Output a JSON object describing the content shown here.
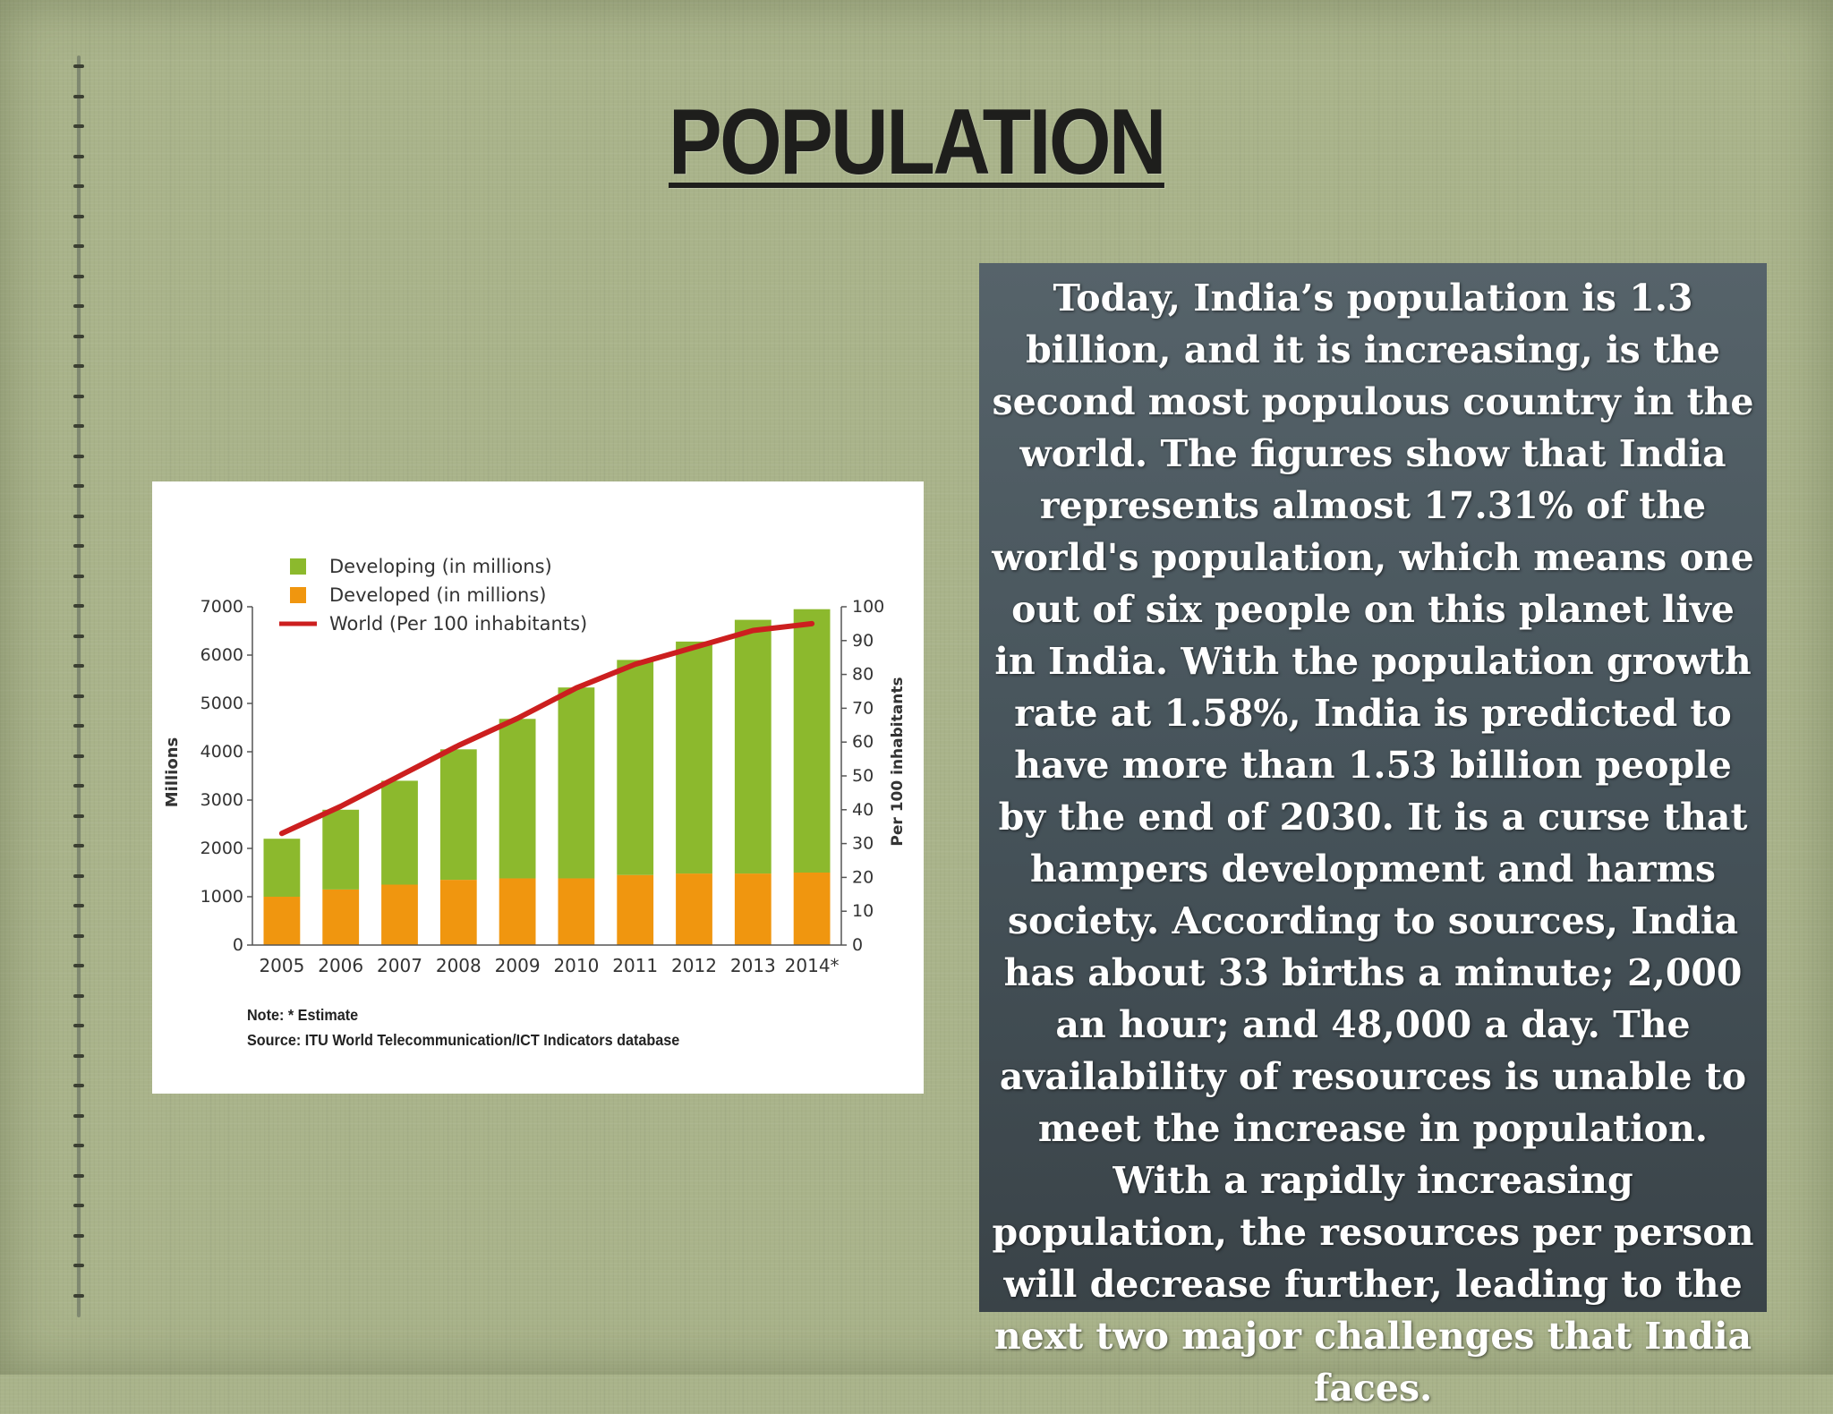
{
  "slide": {
    "title": "POPULATION",
    "body": "Today, India’s population is 1.3 billion, and it is increasing, is the second most populous country in the world. The figures show that India represents almost 17.31% of the world's population, which means one out of six people on this planet live in India.  With the population growth rate at 1.58%, India is predicted to have more than 1.53 billion people by the end of 2030. It is a curse that hampers development and harms society. According to sources, India has about 33 births a minute; 2,000 an hour; and 48,000 a day. The availability of resources is unable to meet the increase in population. With a rapidly increasing population, the resources per person will decrease further, leading to the next two major challenges that India faces."
  },
  "chart_data": {
    "type": "bar",
    "categories": [
      "2005",
      "2006",
      "2007",
      "2008",
      "2009",
      "2010",
      "2011",
      "2012",
      "2013",
      "2014*"
    ],
    "series": [
      {
        "name": "Developed (in millions)",
        "kind": "bar",
        "stack": "total",
        "color": "#f0960f",
        "values": [
          1000,
          1150,
          1250,
          1350,
          1380,
          1380,
          1450,
          1480,
          1480,
          1500
        ]
      },
      {
        "name": "Developing (in millions)",
        "kind": "bar",
        "stack": "total",
        "color": "#8cb92d",
        "values": [
          1200,
          1650,
          2150,
          2700,
          3300,
          3950,
          4450,
          4800,
          5250,
          5450
        ]
      },
      {
        "name": "World (Per 100 inhabitants)",
        "kind": "line",
        "axis": "right",
        "color": "#cc1f1f",
        "values": [
          33,
          41,
          50,
          59,
          67,
          76,
          83,
          88,
          93,
          95
        ]
      }
    ],
    "ylabel": "Millions",
    "ylim": [
      0,
      7000
    ],
    "yticks": [
      "0",
      "1000",
      "2000",
      "3000",
      "4000",
      "5000",
      "6000",
      "7000"
    ],
    "ylabel_right": "Per 100 inhabitants",
    "ylim_right": [
      0,
      100
    ],
    "yticks_right": [
      "0",
      "10",
      "20",
      "30",
      "40",
      "50",
      "60",
      "70",
      "80",
      "90",
      "100"
    ],
    "legend_position": "top-left",
    "grid": false,
    "note": "Note: * Estimate",
    "source": "Source:  ITU World Telecommunication/ICT Indicators database"
  },
  "colors": {
    "background": "#a9b38a",
    "text_box": "#4a565c"
  }
}
